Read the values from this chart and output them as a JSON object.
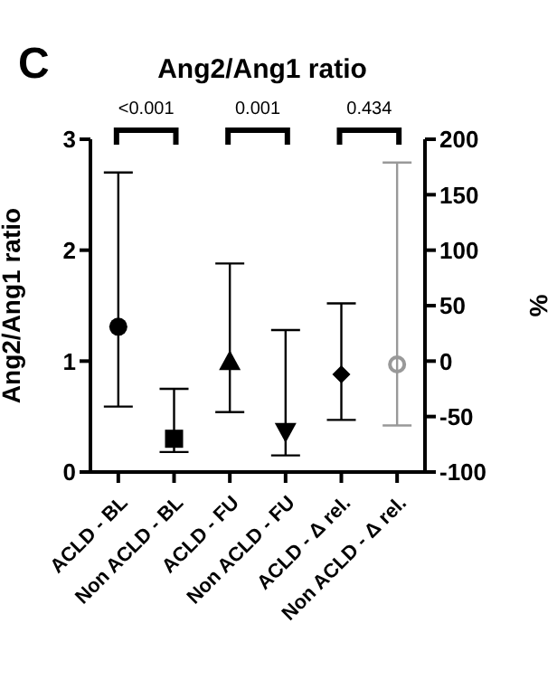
{
  "chart_data": {
    "type": "scatter",
    "title": "Ang2/Ang1 ratio",
    "ylabel": "Ang2/Ang1 ratio",
    "y2label": "%",
    "categories": [
      "ACLD - BL",
      "Non ACLD - BL",
      "ACLD - FU",
      "Non ACLD - FU",
      "ACLD - Δ rel.",
      "Non ACLD - Δ rel."
    ],
    "ylim": [
      0,
      3
    ],
    "yticks": [
      0,
      1,
      2,
      3
    ],
    "y2lim": [
      -100,
      200
    ],
    "y2ticks": [
      -100,
      -50,
      0,
      50,
      100,
      150,
      200
    ],
    "annotations": [
      "C",
      "<0.001",
      "0.001",
      "0.434"
    ],
    "series": [
      {
        "x": [
          "ACLD - BL"
        ],
        "values": [
          1.31
        ],
        "errors": [
          [
            0.59,
            2.7
          ]
        ],
        "color": "#000000",
        "marker": "circle"
      },
      {
        "x": [
          "Non ACLD - BL"
        ],
        "values": [
          0.3
        ],
        "errors": [
          [
            0.18,
            0.75
          ]
        ],
        "color": "#000000",
        "marker": "square"
      },
      {
        "x": [
          "ACLD - FU"
        ],
        "values": [
          1.0
        ],
        "errors": [
          [
            0.54,
            1.88
          ]
        ],
        "color": "#000000",
        "marker": "triangle"
      },
      {
        "x": [
          "Non ACLD - FU"
        ],
        "values": [
          0.36
        ],
        "errors": [
          [
            0.15,
            1.28
          ]
        ],
        "color": "#000000",
        "marker": "triangle-down"
      },
      {
        "x": [
          "ACLD - Δ rel."
        ],
        "values": [
          -12
        ],
        "errors": [
          [
            -53,
            52
          ]
        ],
        "color": "#000000",
        "marker": "diamond",
        "axis": "y2"
      },
      {
        "x": [
          "Non ACLD - Δ rel."
        ],
        "values": [
          -3
        ],
        "errors": [
          [
            -58,
            179
          ]
        ],
        "color": "#999999",
        "marker": "circle-open",
        "axis": "y2"
      }
    ]
  }
}
